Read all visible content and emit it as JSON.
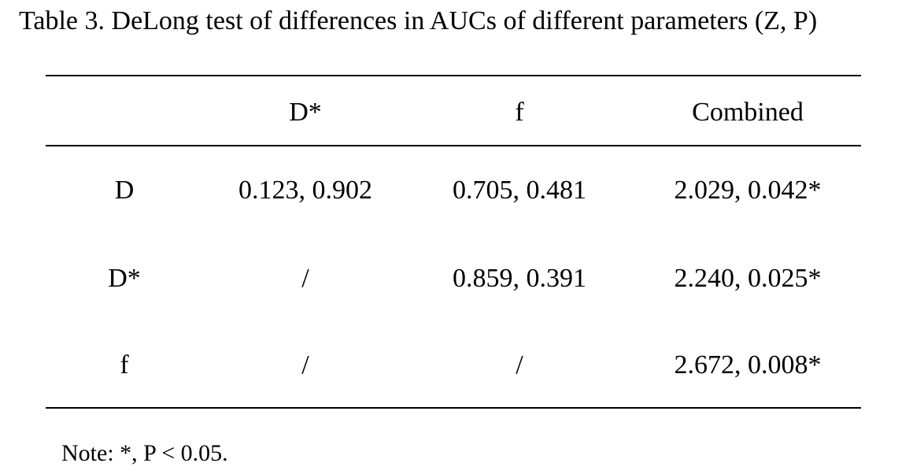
{
  "title": "Table 3. DeLong test of differences in AUCs of different parameters (Z, P)",
  "table": {
    "header": [
      "",
      "D*",
      "f",
      "Combined"
    ],
    "rows": [
      [
        "D",
        "0.123, 0.902",
        "0.705, 0.481",
        "2.029, 0.042*"
      ],
      [
        "D*",
        "/",
        "0.859, 0.391",
        "2.240, 0.025*"
      ],
      [
        "f",
        "/",
        "/",
        "2.672, 0.008*"
      ]
    ]
  },
  "note": "Note: *, P < 0.05."
}
